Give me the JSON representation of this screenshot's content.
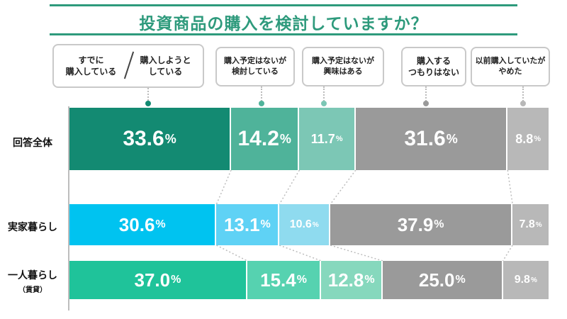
{
  "title": "投資商品の購入を検討していますか？",
  "legend": {
    "purchased_a": [
      "すでに",
      "購入している"
    ],
    "purchased_b": [
      "購入しようと",
      "している"
    ],
    "considering": [
      "購入予定はないが",
      "検討している"
    ],
    "interested": [
      "購入予定はないが",
      "興味はある"
    ],
    "no_intent": [
      "購入する",
      "つもりはない"
    ],
    "quit": [
      "以前購入していたが",
      "やめた"
    ]
  },
  "chart_data": {
    "type": "bar",
    "orientation": "horizontal-stacked-100",
    "title": "投資商品の購入を検討していますか？",
    "unit": "%",
    "ylim": [
      0,
      100
    ],
    "categories": [
      "回答全体",
      "実家暮らし",
      "一人暮らし"
    ],
    "category_notes": [
      "",
      "",
      "（賃貸）"
    ],
    "series": [
      {
        "name": "すでに購入している／購入しようとしている",
        "values": [
          33.6,
          30.6,
          37.0
        ]
      },
      {
        "name": "購入予定はないが検討している",
        "values": [
          14.2,
          13.1,
          15.4
        ]
      },
      {
        "name": "購入予定はないが興味はある",
        "values": [
          11.7,
          10.6,
          12.8
        ]
      },
      {
        "name": "購入するつもりはない",
        "values": [
          31.6,
          37.9,
          25.0
        ]
      },
      {
        "name": "以前購入していたがやめた",
        "values": [
          8.8,
          7.8,
          9.8
        ]
      }
    ],
    "colors": [
      [
        "#138a72",
        "#00c3f0",
        "#1fc39a"
      ],
      [
        "#4fb39a",
        "#5fd2f5",
        "#56d2b0"
      ],
      [
        "#7cc7b5",
        "#8fdbef",
        "#86d8bd"
      ],
      [
        "#9a9a9a",
        "#9a9a9a",
        "#9a9a9a"
      ],
      [
        "#b8b8b8",
        "#b8b8b8",
        "#b8b8b8"
      ]
    ],
    "pct_label": "%"
  }
}
